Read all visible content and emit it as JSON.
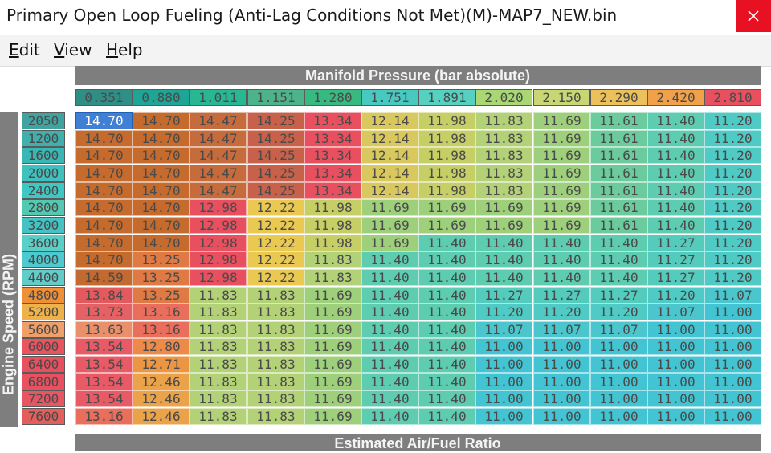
{
  "window": {
    "title": "Primary Open Loop Fueling (Anti-Lag Conditions Not Met)(M)-MAP7_NEW.bin",
    "close_icon": "close-icon",
    "close_color": "#e81123"
  },
  "menu": [
    {
      "label": "Edit",
      "mnemonic": "E",
      "rest": "dit"
    },
    {
      "label": "View",
      "mnemonic": "V",
      "rest": "iew"
    },
    {
      "label": "Help",
      "mnemonic": "H",
      "rest": "elp"
    }
  ],
  "table": {
    "x_axis_title": "Manifold Pressure (bar absolute)",
    "y_axis_title": "Engine Speed (RPM)",
    "value_title": "Estimated Air/Fuel Ratio",
    "selected_cell": {
      "row": 0,
      "col": 0
    },
    "x_axis": [
      "0.351",
      "0.880",
      "1.011",
      "1.151",
      "1.280",
      "1.751",
      "1.891",
      "2.020",
      "2.150",
      "2.290",
      "2.420",
      "2.810"
    ],
    "y_axis": [
      "2050",
      "1200",
      "1600",
      "2000",
      "2400",
      "2800",
      "3200",
      "3600",
      "4000",
      "4400",
      "4800",
      "5200",
      "5600",
      "6000",
      "6400",
      "6800",
      "7200",
      "7600"
    ],
    "rows": [
      [
        "14.70",
        "14.70",
        "14.47",
        "14.25",
        "13.34",
        "12.14",
        "11.98",
        "11.83",
        "11.69",
        "11.61",
        "11.40",
        "11.20"
      ],
      [
        "14.70",
        "14.70",
        "14.47",
        "14.25",
        "13.34",
        "12.14",
        "11.98",
        "11.83",
        "11.69",
        "11.61",
        "11.40",
        "11.20"
      ],
      [
        "14.70",
        "14.70",
        "14.47",
        "14.25",
        "13.34",
        "12.14",
        "11.98",
        "11.83",
        "11.69",
        "11.61",
        "11.40",
        "11.20"
      ],
      [
        "14.70",
        "14.70",
        "14.47",
        "14.25",
        "13.34",
        "12.14",
        "11.98",
        "11.83",
        "11.69",
        "11.61",
        "11.40",
        "11.20"
      ],
      [
        "14.70",
        "14.70",
        "14.47",
        "14.25",
        "13.34",
        "12.14",
        "11.98",
        "11.83",
        "11.69",
        "11.61",
        "11.40",
        "11.20"
      ],
      [
        "14.70",
        "14.70",
        "12.98",
        "12.22",
        "11.98",
        "11.69",
        "11.69",
        "11.69",
        "11.69",
        "11.61",
        "11.40",
        "11.20"
      ],
      [
        "14.70",
        "14.70",
        "12.98",
        "12.22",
        "11.98",
        "11.69",
        "11.69",
        "11.69",
        "11.69",
        "11.61",
        "11.40",
        "11.20"
      ],
      [
        "14.70",
        "14.70",
        "12.98",
        "12.22",
        "11.98",
        "11.69",
        "11.40",
        "11.40",
        "11.40",
        "11.40",
        "11.27",
        "11.20"
      ],
      [
        "14.70",
        "13.25",
        "12.98",
        "12.22",
        "11.83",
        "11.40",
        "11.40",
        "11.40",
        "11.40",
        "11.40",
        "11.27",
        "11.20"
      ],
      [
        "14.59",
        "13.25",
        "12.98",
        "12.22",
        "11.83",
        "11.40",
        "11.40",
        "11.40",
        "11.40",
        "11.40",
        "11.27",
        "11.20"
      ],
      [
        "13.84",
        "13.25",
        "11.83",
        "11.83",
        "11.69",
        "11.40",
        "11.40",
        "11.27",
        "11.27",
        "11.27",
        "11.20",
        "11.07"
      ],
      [
        "13.73",
        "13.16",
        "11.83",
        "11.83",
        "11.69",
        "11.40",
        "11.40",
        "11.20",
        "11.20",
        "11.20",
        "11.07",
        "11.00"
      ],
      [
        "13.63",
        "13.16",
        "11.83",
        "11.83",
        "11.69",
        "11.40",
        "11.40",
        "11.07",
        "11.07",
        "11.07",
        "11.00",
        "11.00"
      ],
      [
        "13.54",
        "12.80",
        "11.83",
        "11.83",
        "11.69",
        "11.40",
        "11.40",
        "11.00",
        "11.00",
        "11.00",
        "11.00",
        "11.00"
      ],
      [
        "13.54",
        "12.71",
        "11.83",
        "11.83",
        "11.69",
        "11.40",
        "11.40",
        "11.00",
        "11.00",
        "11.00",
        "11.00",
        "11.00"
      ],
      [
        "13.54",
        "12.46",
        "11.83",
        "11.83",
        "11.69",
        "11.40",
        "11.40",
        "11.00",
        "11.00",
        "11.00",
        "11.00",
        "11.00"
      ],
      [
        "13.54",
        "12.46",
        "11.83",
        "11.83",
        "11.69",
        "11.40",
        "11.40",
        "11.00",
        "11.00",
        "11.00",
        "11.00",
        "11.00"
      ],
      [
        "13.16",
        "12.46",
        "11.83",
        "11.83",
        "11.69",
        "11.40",
        "11.40",
        "11.00",
        "11.00",
        "11.00",
        "11.00",
        "11.00"
      ]
    ]
  },
  "colors": {
    "axis_bar": "#7e7e7e",
    "selected": "#3f7fd4",
    "x_axis_cells": [
      "#2f8f86",
      "#1fa596",
      "#27b792",
      "#4cb38a",
      "#37b97f",
      "#48c9c0",
      "#56d0c0",
      "#a8d774",
      "#c8d774",
      "#ecc05a",
      "#f0a14a",
      "#e8505f"
    ],
    "y_axis_cells": [
      "#3fa3a0",
      "#3fb0ac",
      "#38b8b4",
      "#3fc2bf",
      "#3ec8c4",
      "#55c8b2",
      "#45c2c4",
      "#58cfc7",
      "#4ec9d0",
      "#62ccc8",
      "#ef8f36",
      "#efb24a",
      "#ee9f6a",
      "#e8555f",
      "#e8505f",
      "#e95060",
      "#e85563",
      "#e45f5c"
    ],
    "values": {
      "14.70": "#c56b2e",
      "14.59": "#c36a30",
      "14.47": "#c66b3c",
      "14.25": "#c7614a",
      "13.84": "#e25a5e",
      "13.73": "#e46263",
      "13.63": "#e9906a",
      "13.54": "#e85b66",
      "13.34": "#e8505f",
      "13.25": "#e07a45",
      "13.16": "#e96e5c",
      "12.98": "#e8505f",
      "12.80": "#ed8a4a",
      "12.71": "#ec9644",
      "12.46": "#eba34a",
      "12.22": "#e9c952",
      "12.14": "#d8c85e",
      "11.98": "#c6cf66",
      "11.83": "#b3d176",
      "11.69": "#9ed07c",
      "11.61": "#6ccb9c",
      "11.40": "#5dccb0",
      "11.27": "#55cbbd",
      "11.20": "#4fcac4",
      "11.07": "#4bc6cd",
      "11.00": "#42c4d2"
    }
  }
}
